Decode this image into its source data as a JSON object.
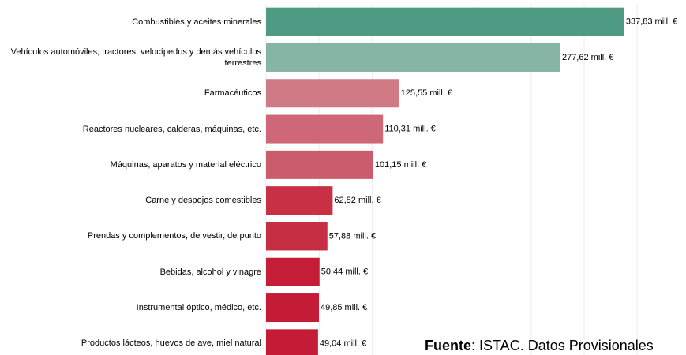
{
  "chart_data": {
    "type": "bar",
    "orientation": "horizontal",
    "categories": [
      "Combustibles y aceites minerales",
      "Vehículos automóviles, tractores, velocípedos y demás vehículos terrestres",
      "Farmacéuticos",
      "Reactores nucleares, calderas, máquinas, etc.",
      "Máquinas, aparatos y material eléctrico",
      "Carne y despojos comestibles",
      "Prendas y complementos, de vestir, de punto",
      "Bebidas, alcohol y vinagre",
      "Instrumental óptico, médico, etc.",
      "Productos lácteos, huevos de ave, miel natural"
    ],
    "values": [
      337.83,
      277.62,
      125.55,
      110.31,
      101.15,
      62.82,
      57.88,
      50.44,
      49.85,
      49.04
    ],
    "value_labels": [
      "337,83 mill. €",
      "277,62 mill. €",
      "125,55 mill. €",
      "110,31 mill. €",
      "101,15 mill. €",
      "62,82 mill. €",
      "57,88 mill. €",
      "50,44 mill. €",
      "49,85 mill. €",
      "49,04 mill. €"
    ],
    "colors": [
      "#4f9a82",
      "#86b5a5",
      "#d07a86",
      "#ce6777",
      "#cb5c6c",
      "#c83046",
      "#c62e44",
      "#c51d38",
      "#c41c36",
      "#c41c36"
    ],
    "xlim": [
      0,
      396
    ],
    "xticks": [
      0,
      50,
      100,
      150,
      200,
      250,
      300,
      350
    ],
    "grid": true,
    "source": {
      "label": "Fuente",
      "text": ": ISTAC. Datos Provisionales"
    }
  }
}
